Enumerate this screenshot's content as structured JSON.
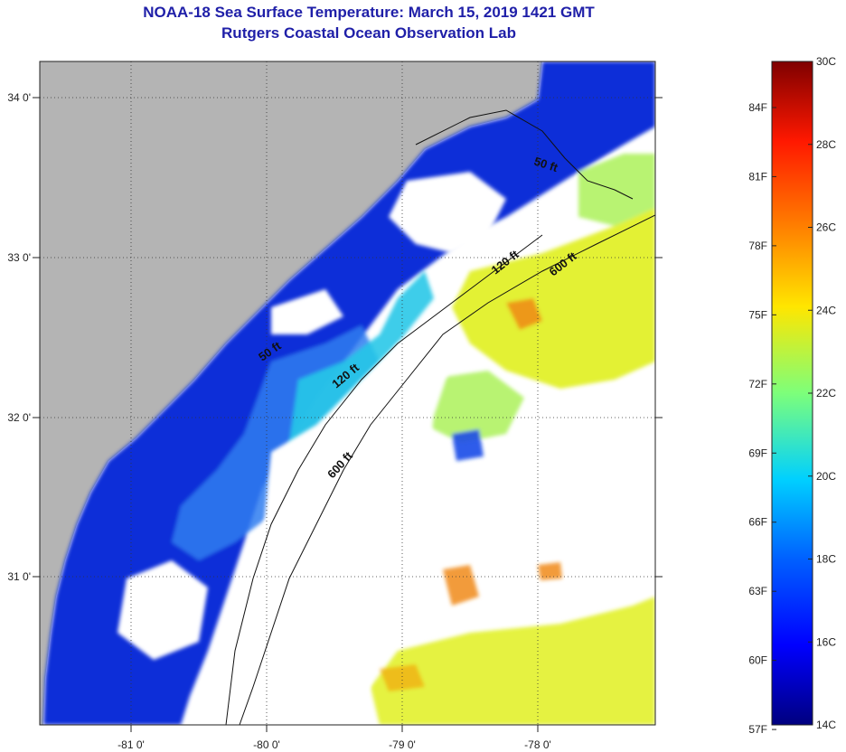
{
  "header": {
    "title": "NOAA-18 Sea Surface Temperature:  March 15, 2019 1421 GMT",
    "subtitle": "Rutgers Coastal Ocean Observation Lab"
  },
  "map": {
    "lat_labels": [
      "34 0'",
      "33 0'",
      "32 0'",
      "31 0'"
    ],
    "lon_labels": [
      "-81 0'",
      "-80 0'",
      "-79 0'",
      "-78 0'"
    ],
    "contours": [
      {
        "label": "50 ft"
      },
      {
        "label": "120 ft"
      },
      {
        "label": "600 ft"
      },
      {
        "label": "50 ft"
      },
      {
        "label": "120 ft"
      },
      {
        "label": "600 ft"
      }
    ],
    "colors": {
      "land": "#b4b4b4",
      "cloud": "#ffffff",
      "cold": "#0a2fd8",
      "cool": "#2f7df0",
      "warm": "#e0f020",
      "hot": "#f08a18"
    }
  },
  "colorbar": {
    "fahrenheit_labels": [
      "84F",
      "81F",
      "78F",
      "75F",
      "72F",
      "69F",
      "66F",
      "63F",
      "60F",
      "57F"
    ],
    "celsius_labels": [
      "30C",
      "28C",
      "26C",
      "24C",
      "22C",
      "20C",
      "18C",
      "16C",
      "14C"
    ]
  }
}
